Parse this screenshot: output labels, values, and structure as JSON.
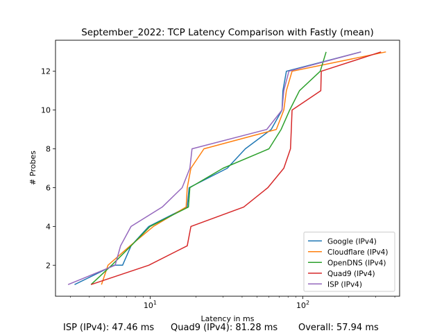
{
  "chart_data": {
    "type": "line",
    "title": "September_2022: TCP Latency Comparison with Fastly (mean)",
    "xlabel": "Latency in ms",
    "ylabel": "# Probes",
    "xscale": "log",
    "xlim": [
      2.4,
      430
    ],
    "ylim": [
      0.4,
      13.6
    ],
    "x_major_ticks": [
      10,
      100
    ],
    "x_tick_labels": [
      "10^1",
      "10^2"
    ],
    "y_ticks": [
      2,
      4,
      6,
      8,
      10,
      12
    ],
    "grid": false,
    "legend_position": "lower-right",
    "series": [
      {
        "name": "Google (IPv4)",
        "color": "#1f77b4",
        "points": [
          [
            3.2,
            1
          ],
          [
            5.8,
            2
          ],
          [
            6.6,
            2
          ],
          [
            7.5,
            3
          ],
          [
            9.8,
            4
          ],
          [
            17.5,
            5
          ],
          [
            18,
            6
          ],
          [
            32,
            7
          ],
          [
            42,
            8
          ],
          [
            62,
            9
          ],
          [
            73,
            10
          ],
          [
            74,
            11
          ],
          [
            78,
            12
          ],
          [
            240,
            13
          ]
        ]
      },
      {
        "name": "Cloudflare (IPv4)",
        "color": "#ff7f0e",
        "points": [
          [
            4.8,
            1
          ],
          [
            5.3,
            2
          ],
          [
            7.4,
            3
          ],
          [
            10.5,
            4
          ],
          [
            17.2,
            5
          ],
          [
            17.5,
            6
          ],
          [
            18.5,
            7
          ],
          [
            22.5,
            8
          ],
          [
            67,
            9
          ],
          [
            75,
            10
          ],
          [
            78,
            11
          ],
          [
            85,
            12
          ],
          [
            350,
            13
          ]
        ]
      },
      {
        "name": "OpenDNS (IPv4)",
        "color": "#2ca02c",
        "points": [
          [
            4.1,
            1
          ],
          [
            5.6,
            2
          ],
          [
            7.5,
            3
          ],
          [
            10,
            4
          ],
          [
            17.8,
            5
          ],
          [
            18.2,
            6
          ],
          [
            30,
            7
          ],
          [
            60,
            8
          ],
          [
            72,
            9
          ],
          [
            82,
            10
          ],
          [
            95,
            11
          ],
          [
            130,
            12
          ],
          [
            142,
            13
          ]
        ]
      },
      {
        "name": "Quad9 (IPv4)",
        "color": "#d62728",
        "points": [
          [
            4.1,
            1
          ],
          [
            9.8,
            2
          ],
          [
            17.5,
            3
          ],
          [
            18.5,
            4
          ],
          [
            41,
            5
          ],
          [
            59,
            6
          ],
          [
            75,
            7
          ],
          [
            83,
            8
          ],
          [
            84,
            9
          ],
          [
            85,
            10
          ],
          [
            131,
            11
          ],
          [
            132,
            12
          ],
          [
            325,
            13
          ]
        ]
      },
      {
        "name": "ISP (IPv4)",
        "color": "#9467bd",
        "points": [
          [
            2.9,
            1
          ],
          [
            5.9,
            2
          ],
          [
            6.4,
            3
          ],
          [
            7.5,
            4
          ],
          [
            12,
            5
          ],
          [
            16.2,
            6
          ],
          [
            18.2,
            7
          ],
          [
            18.8,
            8
          ],
          [
            58,
            9
          ],
          [
            73,
            10
          ],
          [
            75,
            11
          ],
          [
            81,
            12
          ],
          [
            240,
            13
          ]
        ]
      }
    ]
  },
  "footer": {
    "isp": "ISP (IPv4): 47.46 ms",
    "quad9": "Quad9 (IPv4): 81.28 ms",
    "overall": "Overall: 57.94 ms"
  }
}
